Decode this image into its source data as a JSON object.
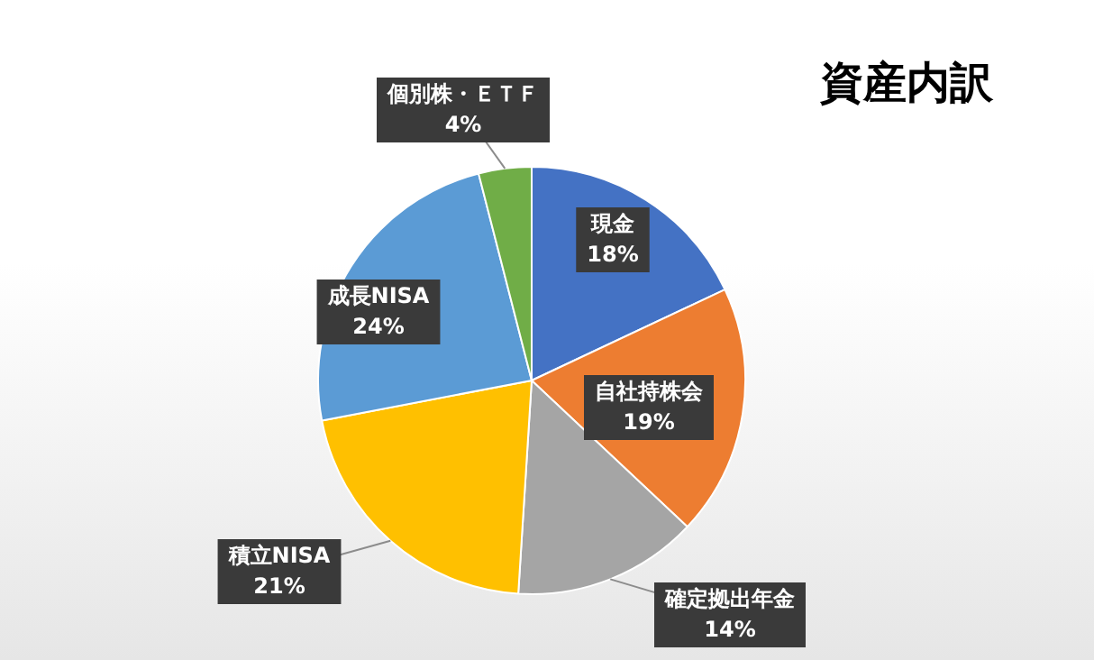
{
  "chart_data": {
    "type": "pie",
    "title": "資産内訳",
    "categories": [
      "現金",
      "自社持株会",
      "確定拠出年金",
      "積立NISA",
      "成長NISA",
      "個別株・ＥＴＦ"
    ],
    "values": [
      18,
      19,
      14,
      21,
      24,
      4
    ],
    "colors": [
      "#4472c4",
      "#ed7d31",
      "#a5a5a5",
      "#ffc000",
      "#5b9bd5",
      "#70ad47"
    ],
    "value_labels": [
      "18%",
      "19%",
      "14%",
      "21%",
      "24%",
      "4%"
    ],
    "legend": false
  }
}
